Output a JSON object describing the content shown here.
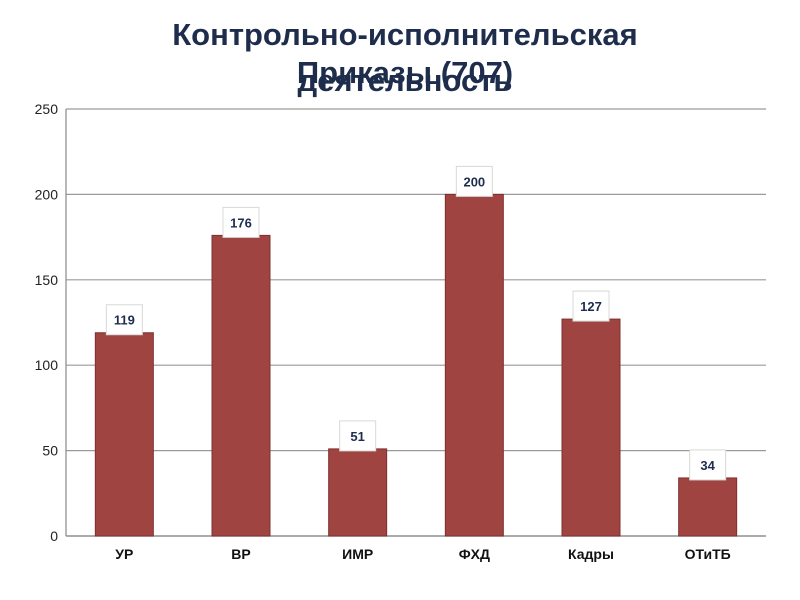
{
  "title_line1": "Контрольно-исполнительская",
  "title_line2a": "Приказы (707)",
  "title_line2b": "деятельность",
  "colors": {
    "bar": "#a04442",
    "grid": "#9a9a9a",
    "title": "#1f2d4d"
  },
  "chart_data": {
    "type": "bar",
    "title": "Контрольно-исполнительская деятельность",
    "subtitle": "Приказы (707)",
    "categories": [
      "УР",
      "ВР",
      "ИМР",
      "ФХД",
      "Кадры",
      "ОТиТБ"
    ],
    "values": [
      119,
      176,
      51,
      200,
      127,
      34
    ],
    "ylim": [
      0,
      250
    ],
    "yticks": [
      0,
      50,
      100,
      150,
      200,
      250
    ],
    "grid": true,
    "legend": "none"
  }
}
